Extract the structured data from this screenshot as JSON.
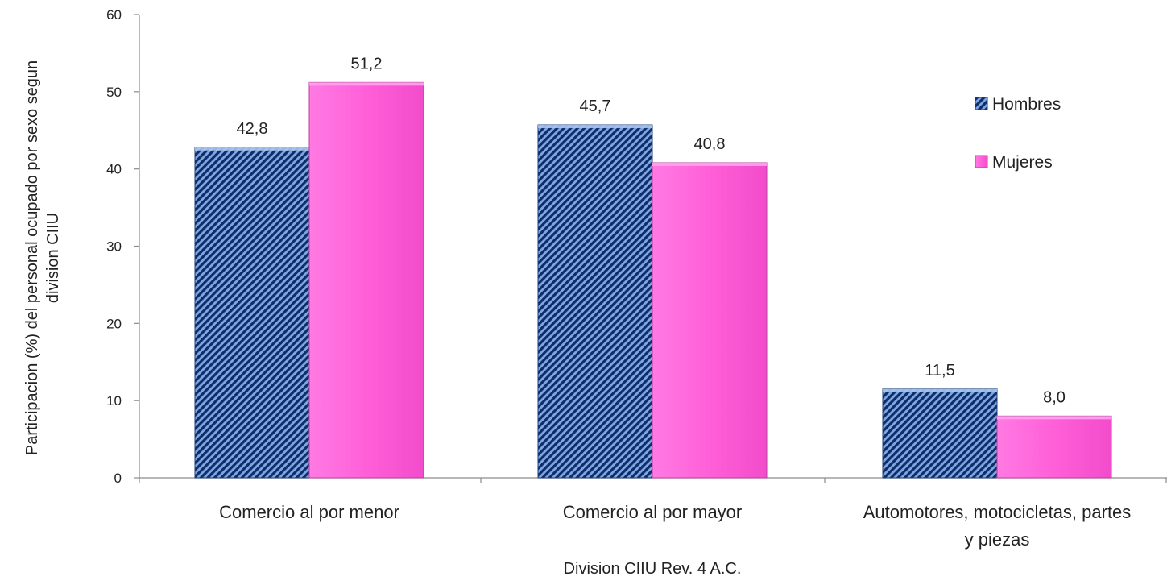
{
  "chart_data": {
    "type": "bar",
    "categories": [
      [
        "Comercio al por menor"
      ],
      [
        "Comercio al por mayor"
      ],
      [
        "Automotores, motocicletas, partes",
        "y piezas"
      ]
    ],
    "series": [
      {
        "name": "Hombres",
        "values": [
          42.8,
          45.7,
          11.5
        ],
        "labels": [
          "42,8",
          "45,7",
          "11,5"
        ],
        "color": "#2f5fb3",
        "pattern": "diagonal-stripes"
      },
      {
        "name": "Mujeres",
        "values": [
          51.2,
          40.8,
          8.0
        ],
        "labels": [
          "51,2",
          "40,8",
          "8,0"
        ],
        "color": "#ff66dd",
        "pattern": "solid"
      }
    ],
    "xlabel": "Division CIIU Rev. 4 A.C.",
    "ylabel": [
      "Participacion (%) del personal ocupado por sexo segun",
      "division CIIU"
    ],
    "ylim": [
      0,
      60
    ],
    "yticks": [
      0,
      10,
      20,
      30,
      40,
      50,
      60
    ],
    "grid": false,
    "legend": "right"
  }
}
